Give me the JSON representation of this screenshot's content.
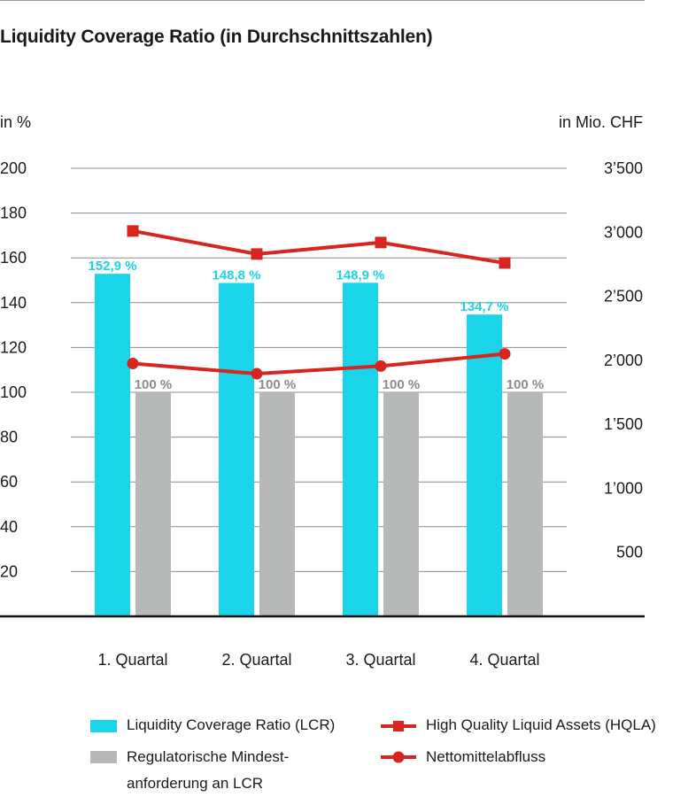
{
  "title": "Liquidity Coverage Ratio (in Durchschnittszahlen)",
  "colors": {
    "lcr": "#1ad4ea",
    "min": "#b7b9b8",
    "line": "#d7261f",
    "grid": "#8c8c8c",
    "axis": "#111111"
  },
  "legend": {
    "lcr": "Liquidity Coverage Ratio (LCR)",
    "min_line1": "Regulatorische Mindest-",
    "min_line2": "anforderung an LCR",
    "hqla": "High Quality Liquid Assets (HQLA)",
    "netto": "Nettomittelabfluss"
  },
  "chart_data": {
    "type": "bar",
    "categories": [
      "1. Quartal",
      "2. Quartal",
      "3. Quartal",
      "4. Quartal"
    ],
    "ylabel": "in %",
    "y2label": "in Mio. CHF",
    "ylim": [
      0,
      200
    ],
    "yticks": [
      20,
      40,
      60,
      80,
      100,
      120,
      140,
      160,
      180,
      200
    ],
    "y2lim": [
      0,
      3500
    ],
    "y2ticks": [
      500,
      1000,
      1500,
      2000,
      2500,
      3000,
      3500
    ],
    "y2tick_labels": [
      "500",
      "1’000",
      "1’500",
      "2’000",
      "2’500",
      "3’000",
      "3’500"
    ],
    "grid": true,
    "legend_position": "bottom",
    "bar_series": [
      {
        "name": "Liquidity Coverage Ratio (LCR)",
        "values": [
          152.9,
          148.8,
          148.9,
          134.7
        ],
        "labels": [
          "152,9 %",
          "148,8 %",
          "148,9 %",
          "134,7 %"
        ]
      },
      {
        "name": "Regulatorische Mindestanforderung an LCR",
        "values": [
          100,
          100,
          100,
          100
        ],
        "labels": [
          "100 %",
          "100 %",
          "100 %",
          "100 %"
        ]
      }
    ],
    "line_series": [
      {
        "name": "High Quality Liquid Assets (HQLA)",
        "axis": "right",
        "marker": "square",
        "values": [
          3010,
          2830,
          2920,
          2760
        ]
      },
      {
        "name": "Nettomittelabfluss",
        "axis": "right",
        "marker": "circle",
        "values": [
          1975,
          1895,
          1955,
          2050
        ]
      }
    ]
  }
}
